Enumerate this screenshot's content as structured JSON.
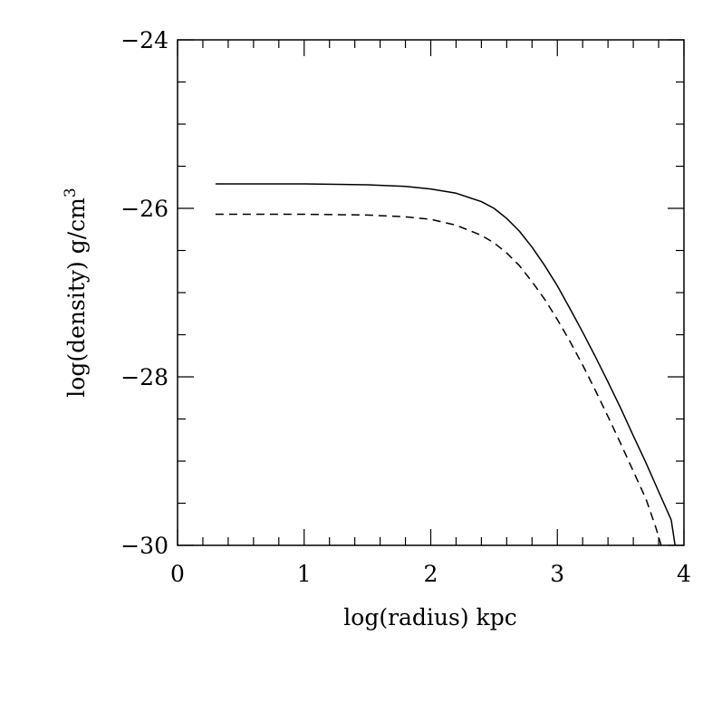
{
  "chart_data": {
    "type": "line",
    "xlabel": "log(radius) kpc",
    "ylabel": "log(density) g/cm",
    "ylabel_superscript": "3",
    "xlim": [
      0,
      4
    ],
    "ylim": [
      -30,
      -24
    ],
    "x_major_ticks": [
      0,
      1,
      2,
      3,
      4
    ],
    "x_tick_labels": [
      "0",
      "1",
      "2",
      "3",
      "4"
    ],
    "x_minor_step": 0.2,
    "y_major_ticks": [
      -30,
      -28,
      -26,
      -24
    ],
    "y_tick_labels": [
      "−30",
      "−28",
      "−26",
      "−24"
    ],
    "y_minor_step": 0.5,
    "grid": false,
    "legend": "none",
    "series": [
      {
        "style": "solid",
        "color": "#000000",
        "points": [
          [
            0.3,
            -25.71
          ],
          [
            1.0,
            -25.71
          ],
          [
            1.5,
            -25.72
          ],
          [
            1.8,
            -25.74
          ],
          [
            2.0,
            -25.77
          ],
          [
            2.2,
            -25.82
          ],
          [
            2.4,
            -25.92
          ],
          [
            2.5,
            -26.0
          ],
          [
            2.6,
            -26.12
          ],
          [
            2.7,
            -26.27
          ],
          [
            2.8,
            -26.46
          ],
          [
            2.9,
            -26.68
          ],
          [
            3.0,
            -26.92
          ],
          [
            3.1,
            -27.19
          ],
          [
            3.2,
            -27.47
          ],
          [
            3.3,
            -27.76
          ],
          [
            3.4,
            -28.06
          ],
          [
            3.5,
            -28.37
          ],
          [
            3.6,
            -28.7
          ],
          [
            3.7,
            -29.02
          ],
          [
            3.8,
            -29.36
          ],
          [
            3.9,
            -29.7
          ],
          [
            3.93,
            -30.0
          ]
        ]
      },
      {
        "style": "dashed",
        "color": "#000000",
        "points": [
          [
            0.3,
            -26.07
          ],
          [
            1.0,
            -26.07
          ],
          [
            1.5,
            -26.08
          ],
          [
            1.8,
            -26.1
          ],
          [
            2.0,
            -26.13
          ],
          [
            2.2,
            -26.2
          ],
          [
            2.4,
            -26.32
          ],
          [
            2.5,
            -26.41
          ],
          [
            2.6,
            -26.53
          ],
          [
            2.7,
            -26.68
          ],
          [
            2.8,
            -26.87
          ],
          [
            2.9,
            -27.08
          ],
          [
            3.0,
            -27.32
          ],
          [
            3.1,
            -27.58
          ],
          [
            3.2,
            -27.86
          ],
          [
            3.3,
            -28.16
          ],
          [
            3.4,
            -28.47
          ],
          [
            3.5,
            -28.79
          ],
          [
            3.6,
            -29.12
          ],
          [
            3.7,
            -29.45
          ],
          [
            3.78,
            -29.8
          ],
          [
            3.82,
            -30.0
          ]
        ]
      }
    ]
  }
}
